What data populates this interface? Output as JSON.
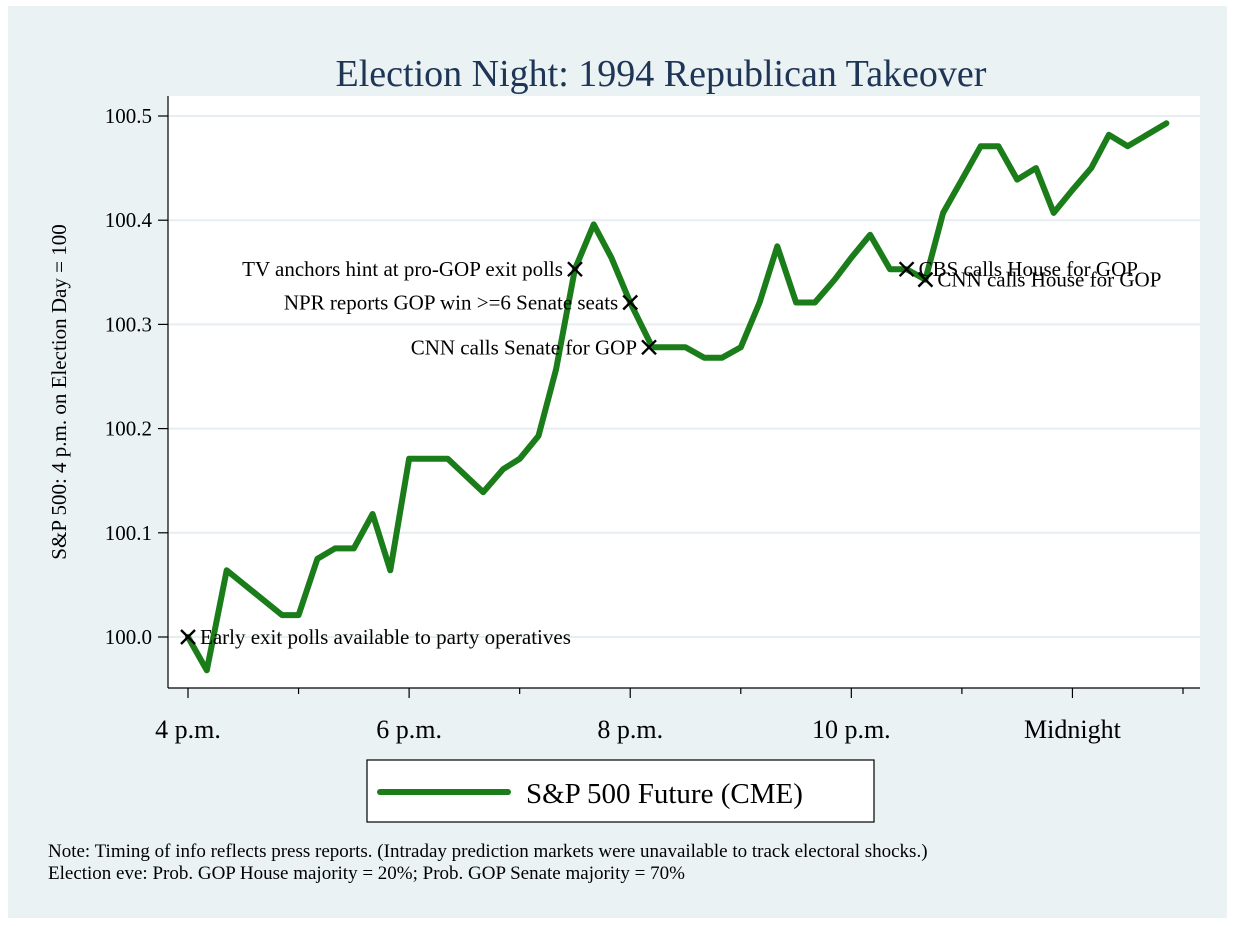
{
  "chart_data": {
    "type": "line",
    "title": "Election Night: 1994 Republican Takeover",
    "ylabel": "S&P 500: 4 p.m. on Election Day = 100",
    "xlabel": "",
    "xlim": [
      4.0,
      13.0
    ],
    "ylim": [
      99.95,
      100.52
    ],
    "x_ticks": [
      {
        "value": 4,
        "label": "4 p.m."
      },
      {
        "value": 6,
        "label": "6 p.m."
      },
      {
        "value": 8,
        "label": "8 p.m."
      },
      {
        "value": 10,
        "label": "10 p.m."
      },
      {
        "value": 12,
        "label": "Midnight"
      }
    ],
    "x_minor_ticks": [
      5,
      7,
      9,
      11,
      13
    ],
    "y_ticks": [
      {
        "value": 100.0,
        "label": "100.0"
      },
      {
        "value": 100.1,
        "label": "100.1"
      },
      {
        "value": 100.2,
        "label": "100.2"
      },
      {
        "value": 100.3,
        "label": "100.3"
      },
      {
        "value": 100.4,
        "label": "100.4"
      },
      {
        "value": 100.5,
        "label": "100.5"
      }
    ],
    "grid": "horizontal",
    "series": [
      {
        "name": "S&P 500 Future (CME)",
        "color": "#1a7d1a",
        "x": [
          4.0,
          4.17,
          4.35,
          4.85,
          5.0,
          5.17,
          5.33,
          5.5,
          5.67,
          5.83,
          6.0,
          6.17,
          6.35,
          6.67,
          6.85,
          7.0,
          7.17,
          7.33,
          7.5,
          7.67,
          7.83,
          8.0,
          8.2,
          8.35,
          8.5,
          8.67,
          8.83,
          9.0,
          9.17,
          9.33,
          9.5,
          9.67,
          9.85,
          10.0,
          10.17,
          10.35,
          10.5,
          10.67,
          10.83,
          11.0,
          11.17,
          11.33,
          11.5,
          11.67,
          11.83,
          12.0,
          12.17,
          12.33,
          12.5,
          12.85
        ],
        "values": [
          100.0,
          99.968,
          100.064,
          100.021,
          100.021,
          100.075,
          100.085,
          100.085,
          100.118,
          100.064,
          100.171,
          100.171,
          100.171,
          100.139,
          100.161,
          100.171,
          100.193,
          100.257,
          100.353,
          100.396,
          100.364,
          100.321,
          100.278,
          100.278,
          100.278,
          100.268,
          100.268,
          100.278,
          100.321,
          100.375,
          100.321,
          100.321,
          100.343,
          100.364,
          100.386,
          100.353,
          100.353,
          100.343,
          100.407,
          100.439,
          100.471,
          100.471,
          100.439,
          100.45,
          100.407,
          100.429,
          100.45,
          100.482,
          100.471,
          100.493
        ]
      }
    ],
    "annotations": [
      {
        "x": 4.0,
        "y": 100.0,
        "text": "Early exit polls available to party operatives",
        "side": "right"
      },
      {
        "x": 7.5,
        "y": 100.353,
        "text": "TV anchors hint at pro-GOP exit polls",
        "side": "left"
      },
      {
        "x": 8.0,
        "y": 100.321,
        "text": "NPR reports GOP win >=6 Senate seats",
        "side": "left"
      },
      {
        "x": 8.17,
        "y": 100.278,
        "text": "CNN calls Senate for GOP",
        "side": "left"
      },
      {
        "x": 10.5,
        "y": 100.353,
        "text": "CBS calls House for GOP",
        "side": "right"
      },
      {
        "x": 10.67,
        "y": 100.343,
        "text": "CNN calls House for GOP",
        "side": "right"
      }
    ],
    "legend": {
      "position": "bottom",
      "label": "S&P 500 Future (CME)"
    },
    "notes": [
      "Note: Timing of info reflects press reports. (Intraday prediction markets were unavailable to track electoral shocks.)",
      "Election eve: Prob. GOP House majority = 20%; Prob. GOP Senate majority = 70%"
    ],
    "colors": {
      "outer_bg": "#eaf2f3",
      "plot_bg": "#ffffff",
      "grid": "#e6eef1",
      "title": "#1e3556",
      "line": "#1a7d1a"
    }
  }
}
